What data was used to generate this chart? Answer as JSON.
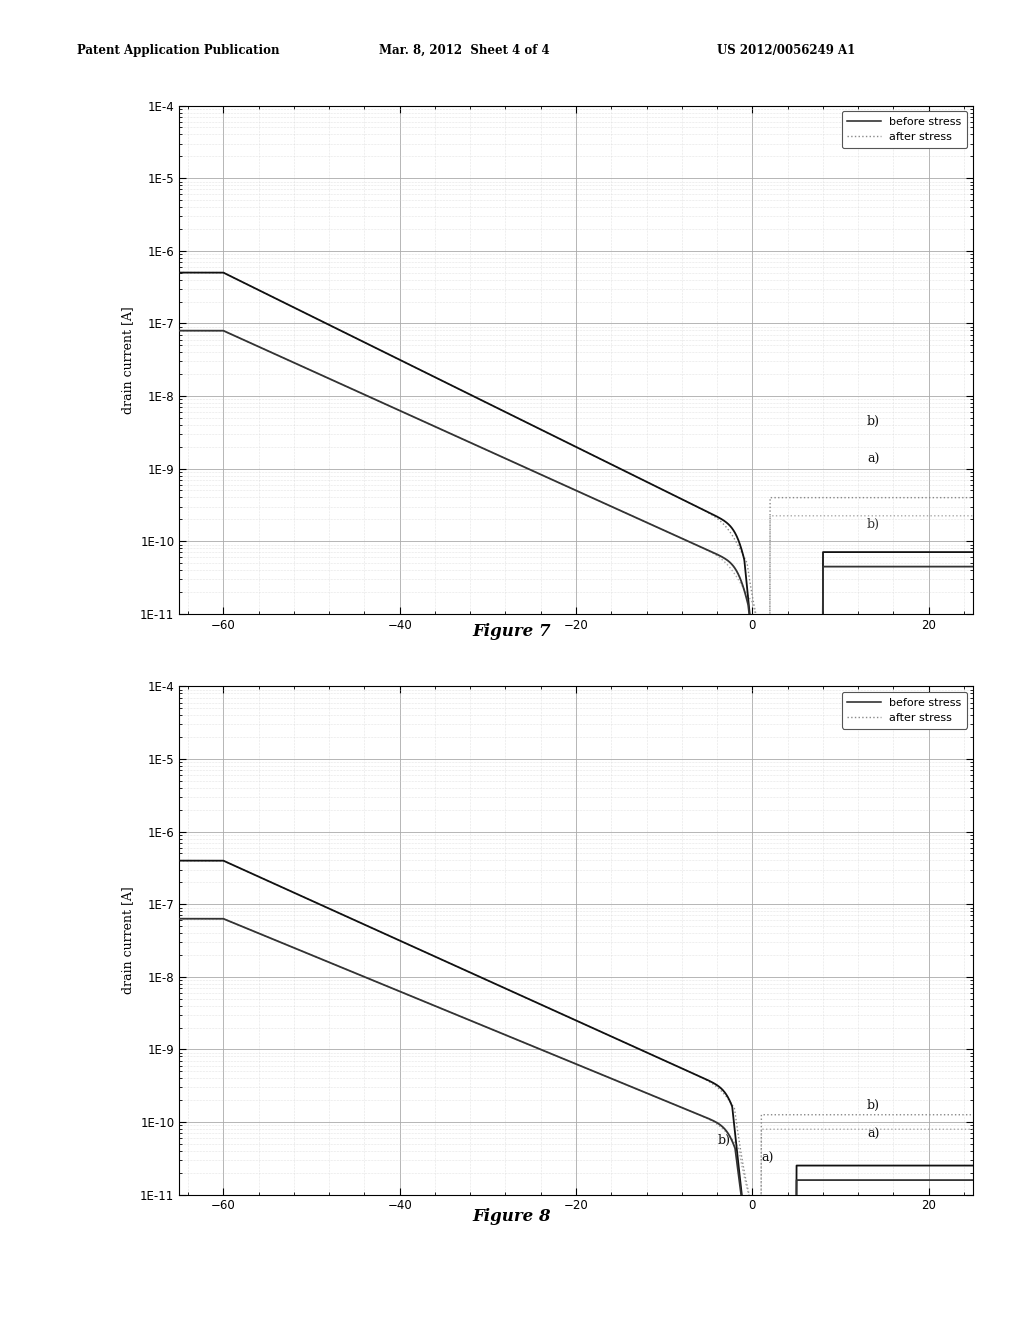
{
  "header_left": "Patent Application Publication",
  "header_mid": "Mar. 8, 2012  Sheet 4 of 4",
  "header_right": "US 2012/0056249 A1",
  "fig7_title": "Figure 7",
  "fig8_title": "Figure 8",
  "ylabel": "drain current [A]",
  "xlabel_ticks": [
    -60,
    -40,
    -20,
    0,
    20
  ],
  "xlim": [
    -65,
    25
  ],
  "legend_before": "before stress",
  "legend_after": "after stress",
  "bg_color": "#ffffff"
}
